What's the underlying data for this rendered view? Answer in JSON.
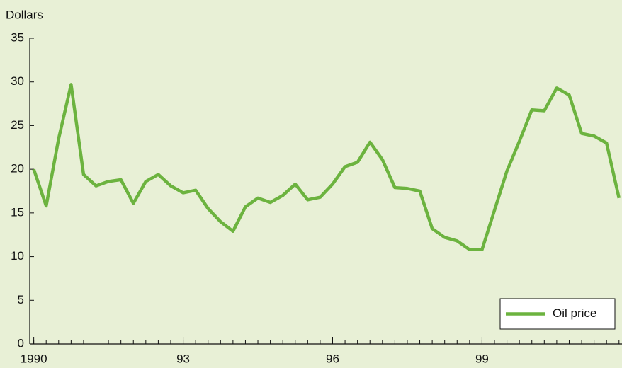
{
  "chart_data": {
    "type": "line",
    "ylabel": "Dollars",
    "x": [
      1990,
      1990.25,
      1990.5,
      1990.75,
      1991,
      1991.25,
      1991.5,
      1991.75,
      1992,
      1992.25,
      1992.5,
      1992.75,
      1993,
      1993.25,
      1993.5,
      1993.75,
      1994,
      1994.25,
      1994.5,
      1994.75,
      1995,
      1995.25,
      1995.5,
      1995.75,
      1996,
      1996.25,
      1996.5,
      1996.75,
      1997,
      1997.25,
      1997.5,
      1997.75,
      1998,
      1998.25,
      1998.5,
      1998.75,
      1999,
      1999.25,
      1999.5,
      1999.75,
      2000,
      2000.25,
      2000.5,
      2000.75,
      2001,
      2001.25,
      2001.5,
      2001.75
    ],
    "series": [
      {
        "name": "Oil price",
        "color": "#6cb33f",
        "values": [
          20,
          15.8,
          23.5,
          29.7,
          19.4,
          18.1,
          18.6,
          18.8,
          16.1,
          18.6,
          19.4,
          18.1,
          17.3,
          17.6,
          15.5,
          14.0,
          12.9,
          15.7,
          16.7,
          16.2,
          17.0,
          18.3,
          16.5,
          16.8,
          18.3,
          20.3,
          20.8,
          23.1,
          21.1,
          17.9,
          17.8,
          17.5,
          13.2,
          12.2,
          11.8,
          10.8,
          10.8,
          15.3,
          19.8,
          23.2,
          26.8,
          26.7,
          29.3,
          28.5,
          24.1,
          23.8,
          23.0,
          16.7
        ]
      }
    ],
    "xlim": [
      1989.92,
      2001.81
    ],
    "xticks": [
      {
        "value": 1990,
        "label": "1990"
      },
      {
        "value": 1993,
        "label": "93"
      },
      {
        "value": 1996,
        "label": "96"
      },
      {
        "value": 1999,
        "label": "99"
      }
    ],
    "ylim": [
      0,
      35
    ],
    "yticks": [
      0,
      5,
      10,
      15,
      20,
      25,
      30,
      35
    ],
    "legend": "lower right"
  }
}
